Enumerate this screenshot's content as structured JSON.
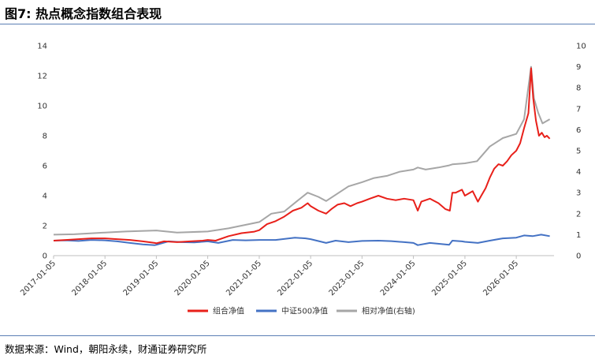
{
  "figure": {
    "title": "图7: 热点概念指数组合表现",
    "source": "数据来源：Wind，朝阳永续，财通证券研究所"
  },
  "colors": {
    "combo_nav": "#e8201a",
    "csi500_nav": "#4472c4",
    "relative_nav": "#a6a6a6",
    "rule": "#5b7fb5",
    "axis_text": "#333333"
  },
  "chart_data": {
    "type": "line",
    "x_type": "date",
    "x_ticks": [
      "2017-01-05",
      "2018-01-05",
      "2019-01-05",
      "2020-01-05",
      "2021-01-05",
      "2022-01-05",
      "2023-01-05",
      "2024-01-05",
      "2025-01-05",
      "2026-01-05"
    ],
    "x_range": [
      "2017-01-05",
      "2026-09-30"
    ],
    "ylim_left": [
      0,
      14
    ],
    "yticks_left": [
      0,
      2,
      4,
      6,
      8,
      10,
      12,
      14
    ],
    "ylim_right": [
      0,
      10
    ],
    "yticks_right": [
      0,
      1,
      2,
      3,
      4,
      5,
      6,
      7,
      8,
      9,
      10
    ],
    "grid": false,
    "legend_position": "bottom",
    "series": [
      {
        "name": "组合净值",
        "axis": "left",
        "color": "#e8201a",
        "points": [
          [
            "2017-01-05",
            1.0
          ],
          [
            "2017-04-01",
            1.05
          ],
          [
            "2017-07-01",
            1.1
          ],
          [
            "2017-10-01",
            1.15
          ],
          [
            "2018-01-05",
            1.15
          ],
          [
            "2018-04-01",
            1.1
          ],
          [
            "2018-07-01",
            1.05
          ],
          [
            "2018-10-01",
            0.95
          ],
          [
            "2018-12-25",
            0.85
          ],
          [
            "2019-01-05",
            0.82
          ],
          [
            "2019-03-01",
            0.95
          ],
          [
            "2019-06-01",
            0.9
          ],
          [
            "2019-09-01",
            0.95
          ],
          [
            "2019-12-01",
            1.0
          ],
          [
            "2020-01-05",
            1.05
          ],
          [
            "2020-03-01",
            1.0
          ],
          [
            "2020-06-01",
            1.3
          ],
          [
            "2020-09-01",
            1.5
          ],
          [
            "2020-12-01",
            1.6
          ],
          [
            "2021-01-05",
            1.7
          ],
          [
            "2021-03-01",
            2.1
          ],
          [
            "2021-05-01",
            2.3
          ],
          [
            "2021-07-01",
            2.6
          ],
          [
            "2021-09-01",
            3.0
          ],
          [
            "2021-11-01",
            3.2
          ],
          [
            "2021-12-15",
            3.5
          ],
          [
            "2022-01-05",
            3.3
          ],
          [
            "2022-03-01",
            3.0
          ],
          [
            "2022-04-25",
            2.8
          ],
          [
            "2022-06-01",
            3.1
          ],
          [
            "2022-07-15",
            3.4
          ],
          [
            "2022-09-01",
            3.5
          ],
          [
            "2022-10-15",
            3.3
          ],
          [
            "2022-12-01",
            3.5
          ],
          [
            "2023-01-05",
            3.6
          ],
          [
            "2023-03-01",
            3.8
          ],
          [
            "2023-05-01",
            4.0
          ],
          [
            "2023-07-01",
            3.8
          ],
          [
            "2023-09-01",
            3.7
          ],
          [
            "2023-11-01",
            3.8
          ],
          [
            "2024-01-05",
            3.7
          ],
          [
            "2024-02-05",
            3.0
          ],
          [
            "2024-03-01",
            3.6
          ],
          [
            "2024-05-01",
            3.8
          ],
          [
            "2024-07-01",
            3.5
          ],
          [
            "2024-08-20",
            3.1
          ],
          [
            "2024-09-20",
            3.0
          ],
          [
            "2024-10-08",
            4.2
          ],
          [
            "2024-11-01",
            4.2
          ],
          [
            "2024-12-15",
            4.4
          ],
          [
            "2025-01-05",
            4.0
          ],
          [
            "2025-03-01",
            4.3
          ],
          [
            "2025-04-07",
            3.6
          ],
          [
            "2025-05-01",
            4.0
          ],
          [
            "2025-06-01",
            4.5
          ],
          [
            "2025-07-01",
            5.2
          ],
          [
            "2025-08-01",
            5.8
          ],
          [
            "2025-09-01",
            6.1
          ],
          [
            "2025-10-01",
            6.0
          ],
          [
            "2025-11-01",
            6.3
          ],
          [
            "2025-12-01",
            6.7
          ],
          [
            "2026-01-05",
            7.0
          ],
          [
            "2026-02-01",
            7.5
          ],
          [
            "2026-03-01",
            8.5
          ],
          [
            "2026-04-01",
            9.5
          ],
          [
            "2026-04-20",
            12.5
          ],
          [
            "2026-05-05",
            10.5
          ],
          [
            "2026-05-25",
            9.0
          ],
          [
            "2026-06-15",
            8.0
          ],
          [
            "2026-07-05",
            8.2
          ],
          [
            "2026-07-25",
            7.9
          ],
          [
            "2026-08-10",
            8.0
          ],
          [
            "2026-08-31",
            7.8
          ]
        ]
      },
      {
        "name": "中证500净值",
        "axis": "left",
        "color": "#4472c4",
        "points": [
          [
            "2017-01-05",
            1.0
          ],
          [
            "2017-04-01",
            1.02
          ],
          [
            "2017-07-01",
            0.98
          ],
          [
            "2017-10-01",
            1.05
          ],
          [
            "2018-01-05",
            1.02
          ],
          [
            "2018-04-01",
            0.95
          ],
          [
            "2018-07-01",
            0.85
          ],
          [
            "2018-10-01",
            0.75
          ],
          [
            "2018-12-25",
            0.7
          ],
          [
            "2019-01-05",
            0.72
          ],
          [
            "2019-04-01",
            0.95
          ],
          [
            "2019-07-01",
            0.9
          ],
          [
            "2019-10-01",
            0.88
          ],
          [
            "2020-01-05",
            0.95
          ],
          [
            "2020-03-20",
            0.85
          ],
          [
            "2020-07-01",
            1.05
          ],
          [
            "2020-10-01",
            1.02
          ],
          [
            "2021-01-05",
            1.05
          ],
          [
            "2021-05-01",
            1.05
          ],
          [
            "2021-09-15",
            1.2
          ],
          [
            "2021-12-01",
            1.15
          ],
          [
            "2022-01-05",
            1.1
          ],
          [
            "2022-04-25",
            0.85
          ],
          [
            "2022-07-01",
            1.0
          ],
          [
            "2022-10-01",
            0.9
          ],
          [
            "2023-01-05",
            0.98
          ],
          [
            "2023-05-01",
            1.0
          ],
          [
            "2023-08-01",
            0.97
          ],
          [
            "2023-11-01",
            0.9
          ],
          [
            "2024-01-05",
            0.85
          ],
          [
            "2024-02-05",
            0.7
          ],
          [
            "2024-05-01",
            0.85
          ],
          [
            "2024-09-15",
            0.72
          ],
          [
            "2024-10-08",
            1.0
          ],
          [
            "2024-12-15",
            0.95
          ],
          [
            "2025-01-05",
            0.92
          ],
          [
            "2025-04-07",
            0.85
          ],
          [
            "2025-07-01",
            1.0
          ],
          [
            "2025-10-01",
            1.15
          ],
          [
            "2026-01-05",
            1.2
          ],
          [
            "2026-03-01",
            1.35
          ],
          [
            "2026-05-01",
            1.3
          ],
          [
            "2026-07-01",
            1.4
          ],
          [
            "2026-08-31",
            1.3
          ]
        ]
      },
      {
        "name": "相对净值(右轴)",
        "axis": "right",
        "color": "#a6a6a6",
        "points": [
          [
            "2017-01-05",
            1.0
          ],
          [
            "2017-06-01",
            1.02
          ],
          [
            "2018-01-05",
            1.1
          ],
          [
            "2018-06-01",
            1.15
          ],
          [
            "2019-01-05",
            1.2
          ],
          [
            "2019-06-01",
            1.1
          ],
          [
            "2020-01-05",
            1.15
          ],
          [
            "2020-06-01",
            1.3
          ],
          [
            "2021-01-05",
            1.6
          ],
          [
            "2021-04-01",
            2.0
          ],
          [
            "2021-07-01",
            2.1
          ],
          [
            "2021-10-01",
            2.6
          ],
          [
            "2021-12-15",
            3.0
          ],
          [
            "2022-03-01",
            2.8
          ],
          [
            "2022-04-25",
            2.6
          ],
          [
            "2022-07-01",
            2.9
          ],
          [
            "2022-10-01",
            3.3
          ],
          [
            "2023-01-05",
            3.5
          ],
          [
            "2023-04-01",
            3.7
          ],
          [
            "2023-07-01",
            3.8
          ],
          [
            "2023-10-01",
            4.0
          ],
          [
            "2024-01-05",
            4.1
          ],
          [
            "2024-02-05",
            4.2
          ],
          [
            "2024-04-01",
            4.1
          ],
          [
            "2024-07-01",
            4.2
          ],
          [
            "2024-09-15",
            4.3
          ],
          [
            "2024-10-08",
            4.35
          ],
          [
            "2025-01-05",
            4.4
          ],
          [
            "2025-04-01",
            4.5
          ],
          [
            "2025-07-01",
            5.2
          ],
          [
            "2025-10-01",
            5.6
          ],
          [
            "2026-01-05",
            5.8
          ],
          [
            "2026-03-01",
            6.5
          ],
          [
            "2026-04-20",
            9.0
          ],
          [
            "2026-05-10",
            7.5
          ],
          [
            "2026-06-10",
            6.8
          ],
          [
            "2026-07-10",
            6.3
          ],
          [
            "2026-08-31",
            6.5
          ]
        ]
      }
    ]
  }
}
